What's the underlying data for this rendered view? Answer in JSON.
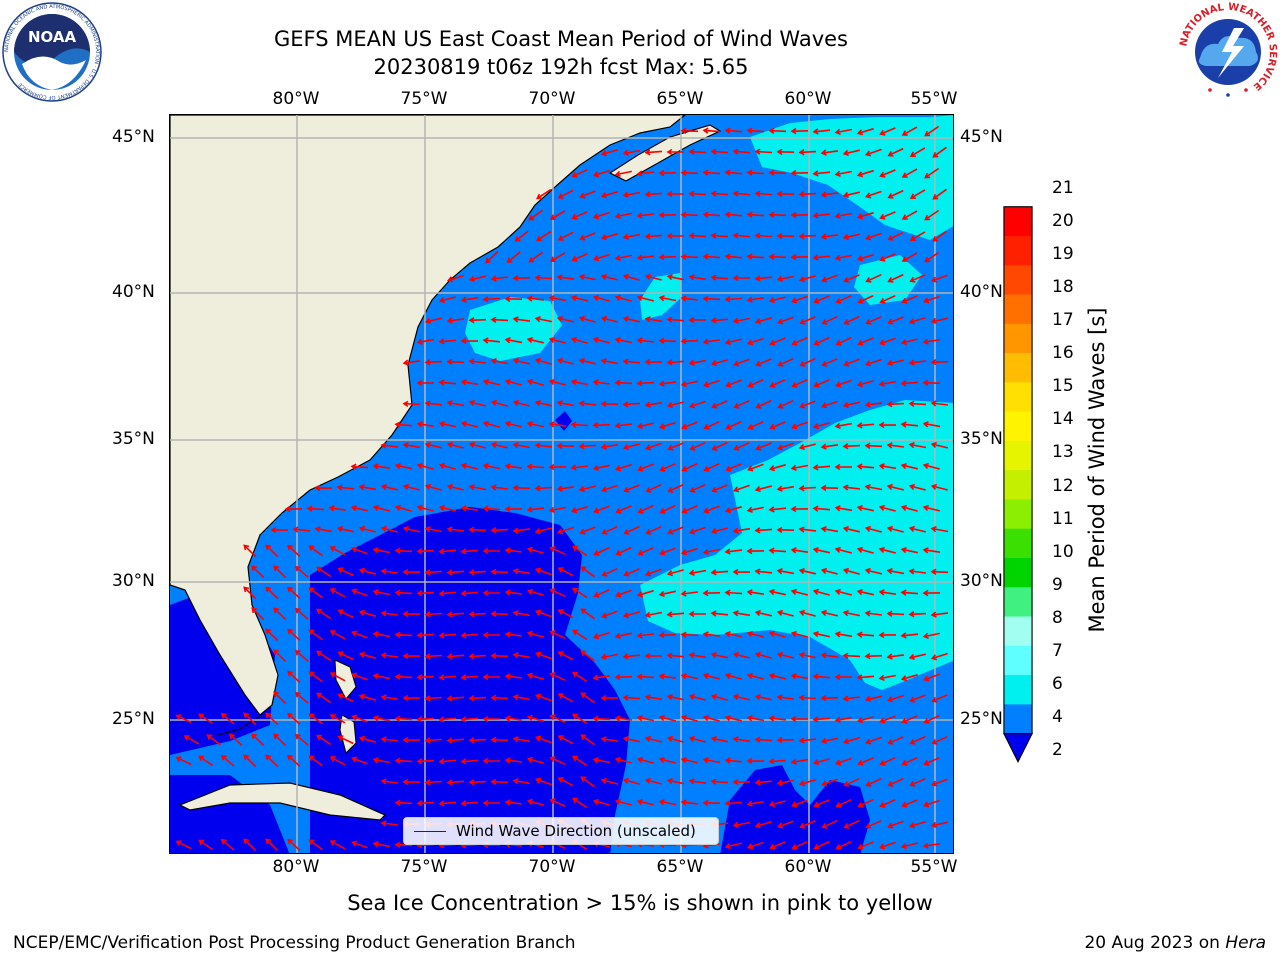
{
  "header": {
    "title_line1": "GEFS MEAN US East Coast Mean Period of Wind Waves",
    "title_line2": "20230819 t06z 192h fcst   Max: 5.65"
  },
  "logos": {
    "noaa_text": "NOAA",
    "noaa_ring_text": "NATIONAL OCEANIC AND ATMOSPHERIC ADMINISTRATION · U.S. DEPARTMENT OF COMMERCE",
    "nws_ring_text": "NATIONAL WEATHER SERVICE"
  },
  "map": {
    "lon_ticks": [
      "80°W",
      "75°W",
      "70°W",
      "65°W",
      "60°W",
      "55°W"
    ],
    "lat_ticks": [
      "45°N",
      "40°N",
      "35°N",
      "30°N",
      "25°N"
    ],
    "land_color": "#efeedc",
    "grid_color": "#b4b4b4",
    "arrow_color": "#ff0000"
  },
  "colorbar": {
    "title": "Mean Period of Wind Waves [s]",
    "labels": [
      "21",
      "20",
      "19",
      "18",
      "17",
      "16",
      "15",
      "14",
      "13",
      "12",
      "11",
      "10",
      "9",
      "8",
      "7",
      "6",
      "4",
      "2"
    ],
    "colors": [
      "#ff0000",
      "#ff2000",
      "#ff4800",
      "#ff7000",
      "#ff9600",
      "#ffbc00",
      "#ffe000",
      "#fff400",
      "#e6f400",
      "#c4f000",
      "#8cee00",
      "#3ce000",
      "#00d400",
      "#40f080",
      "#a0fff0",
      "#60ffff",
      "#00f0f0",
      "#0080ff"
    ],
    "under_color": "#0000ee"
  },
  "legend": {
    "label": "Wind Wave Direction (unscaled)"
  },
  "footer": {
    "ice_note": "Sea Ice Concentration > 15% is shown in pink to yellow",
    "credit": "NCEP/EMC/Verification Post Processing Product Generation Branch",
    "date": "20 Aug 2023 on ",
    "machine": "Hera"
  }
}
